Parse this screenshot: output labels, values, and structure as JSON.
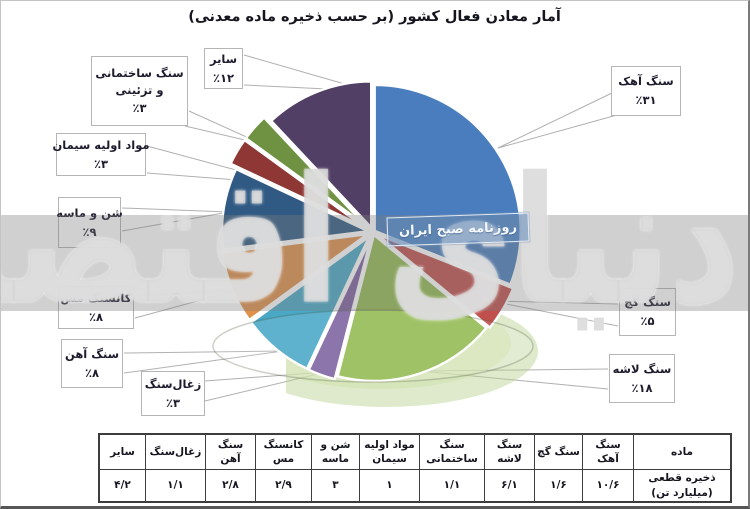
{
  "watermark": {
    "calligraphy": "دنیای اقتصاد",
    "badge": "روزنامه صبح ایران"
  },
  "chart_data": {
    "type": "pie",
    "title": "آمار معادن فعال کشور (بر حسب ذخیره ماده معدنی)",
    "legend_position": "callout-labels-around-pie",
    "slices": [
      {
        "label": "سنگ آهک",
        "pct": 31,
        "pct_fa": "٪۳۱",
        "color": "#4A7DBD"
      },
      {
        "label": "سنگ گچ",
        "pct": 5,
        "pct_fa": "٪۵",
        "color": "#C0504D"
      },
      {
        "label": "سنگ لاشه",
        "pct": 18,
        "pct_fa": "٪۱۸",
        "color": "#93BA52"
      },
      {
        "label": "زغال‌سنگ",
        "pct": 3,
        "pct_fa": "٪۳",
        "color": "#7D62A0"
      },
      {
        "label": "سنگ آهن",
        "pct": 8,
        "pct_fa": "٪۸",
        "color": "#49A8C6"
      },
      {
        "label": "کانسنگ مس",
        "pct": 8,
        "pct_fa": "٪۸",
        "color": "#E0914C"
      },
      {
        "label": "شن و ماسه",
        "pct": 9,
        "pct_fa": "٪۹",
        "color": "#305A83"
      },
      {
        "label": "مواد اولیه سیمان",
        "pct": 3,
        "pct_fa": "٪۳",
        "color": "#8E3734"
      },
      {
        "label": "سنگ ساختمانی و تزئینی",
        "pct": 3,
        "pct_fa": "٪۳",
        "color": "#6F9142"
      },
      {
        "label": "سایر",
        "pct": 12,
        "pct_fa": "٪۱۲",
        "color": "#523F66"
      }
    ],
    "table": {
      "material_header": "ماده",
      "row_header": "ذخیره قطعی (میلیارد تن)",
      "row_header_lines": [
        "ذخیره قطعی",
        "(میلیارد تن)"
      ],
      "columns": [
        {
          "label": "سنگ آهک",
          "value": "۱۰/۶"
        },
        {
          "label": "سنگ گچ",
          "value": "۱/۶"
        },
        {
          "label": "سنگ لاشه",
          "value": "۶/۱"
        },
        {
          "label": "سنگ ساختمانی",
          "value": "۱/۱"
        },
        {
          "label": "مواد اولیه سیمان",
          "value": "۱"
        },
        {
          "label": "شن و ماسه",
          "value": "۳"
        },
        {
          "label": "کانسنگ مس",
          "value": "۲/۹"
        },
        {
          "label": "سنگ آهن",
          "value": "۲/۸"
        },
        {
          "label": "زغال‌سنگ",
          "value": "۱/۱"
        },
        {
          "label": "سایر",
          "value": "۴/۲"
        }
      ]
    }
  }
}
